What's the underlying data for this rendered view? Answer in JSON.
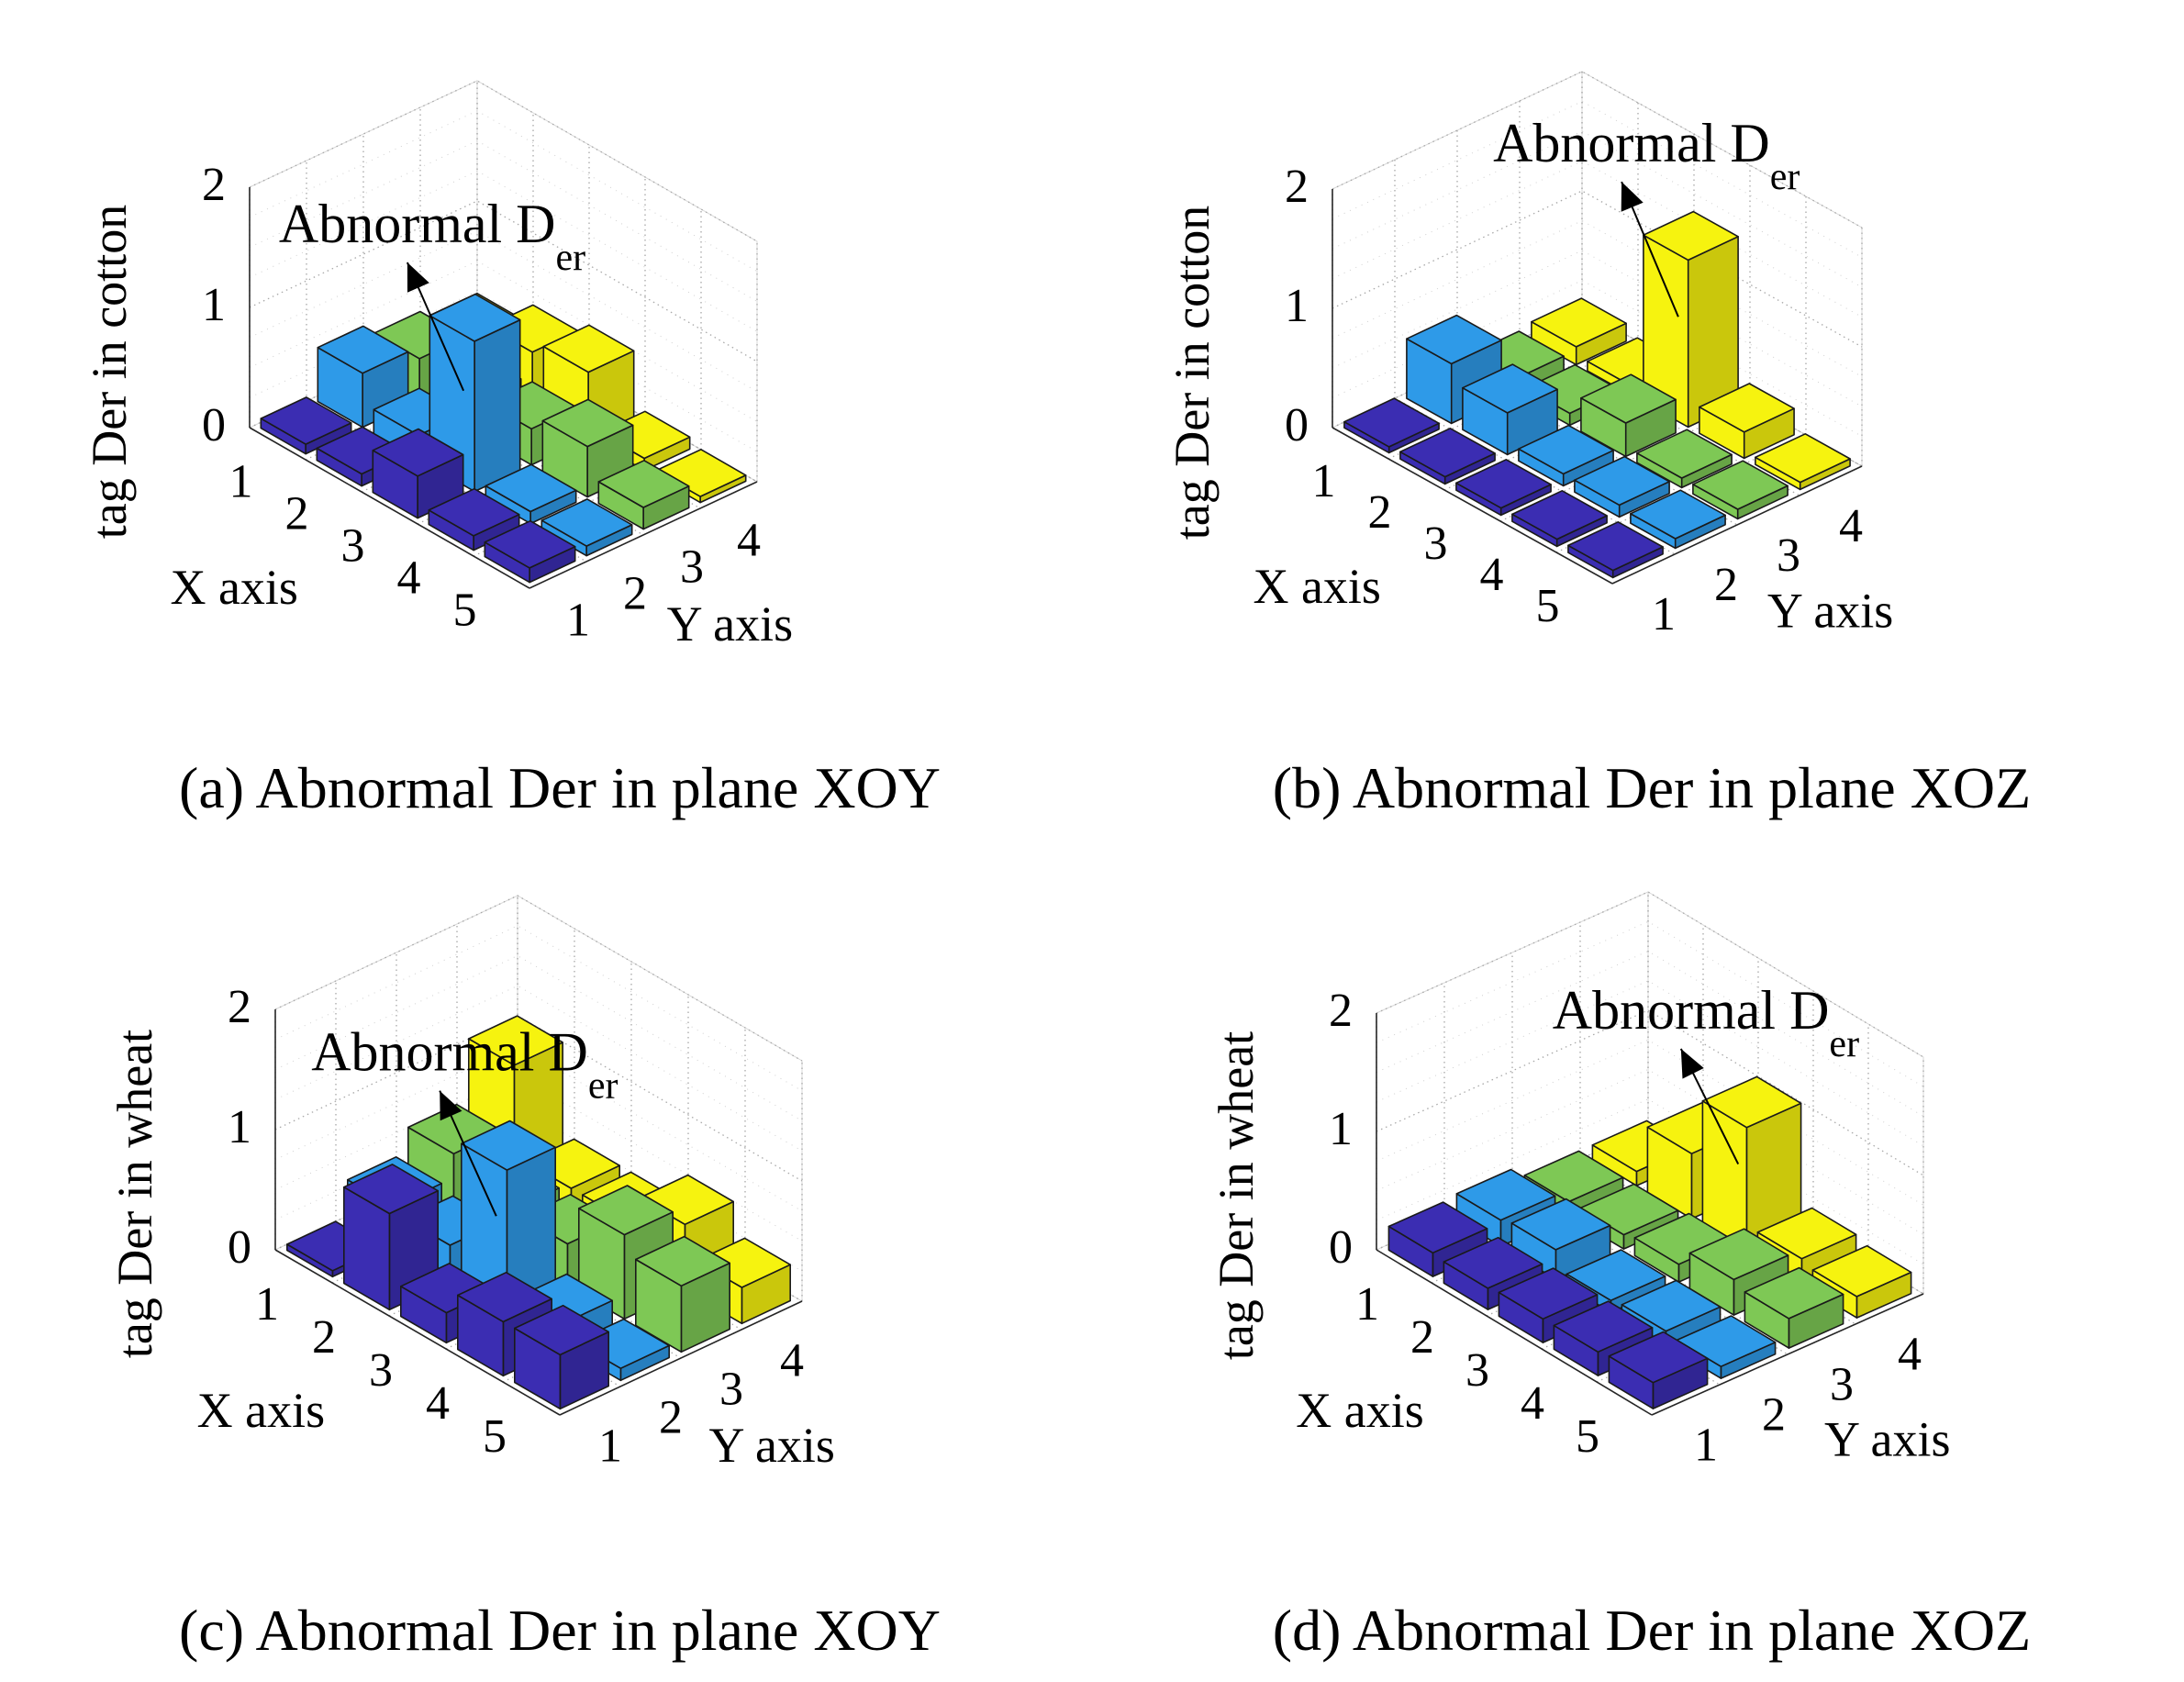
{
  "figure": {
    "panels": [
      "a",
      "b",
      "c",
      "d"
    ]
  },
  "chart_data": [
    {
      "id": "a",
      "type": "bar3d",
      "caption": "(a) Abnormal Der in plane XOY",
      "zlabel": "tag Der in cotton",
      "xlabel": "X axis",
      "ylabel": "Y axis",
      "annotation": {
        "text": "Abnormal D",
        "subscript": "er"
      },
      "x_ticks": [
        "1",
        "2",
        "3",
        "4",
        "5"
      ],
      "y_ticks": [
        "1",
        "2",
        "3",
        "4"
      ],
      "z_ticks": [
        "0",
        "1",
        "2"
      ],
      "zlim": [
        0,
        2
      ],
      "series_colors": [
        "#3b2db2",
        "#2e9ae8",
        "#7ec855",
        "#f6f30f"
      ],
      "values": [
        [
          0.08,
          0.45,
          0.35,
          0.28
        ],
        [
          0.1,
          0.2,
          0.27,
          0.45
        ],
        [
          0.35,
          1.25,
          0.3,
          0.55
        ],
        [
          0.12,
          0.1,
          0.42,
          0.1
        ],
        [
          0.12,
          0.08,
          0.18,
          0.05
        ]
      ]
    },
    {
      "id": "b",
      "type": "bar3d",
      "caption": "(b) Abnormal Der in plane XOZ",
      "zlabel": "tag Der in cotton",
      "xlabel": "X axis",
      "ylabel": "Y axis",
      "annotation": {
        "text": "Abnormal D",
        "subscript": "er"
      },
      "x_ticks": [
        "1",
        "2",
        "3",
        "4",
        "5"
      ],
      "y_ticks": [
        "1",
        "2",
        "3",
        "4"
      ],
      "z_ticks": [
        "0",
        "1",
        "2"
      ],
      "zlim": [
        0,
        2
      ],
      "series_colors": [
        "#3b2db2",
        "#2e9ae8",
        "#7ec855",
        "#f6f30f"
      ],
      "values": [
        [
          0.05,
          0.5,
          0.12,
          0.15
        ],
        [
          0.06,
          0.35,
          0.1,
          0.08
        ],
        [
          0.06,
          0.1,
          0.28,
          1.4
        ],
        [
          0.06,
          0.1,
          0.08,
          0.22
        ],
        [
          0.06,
          0.08,
          0.08,
          0.06
        ]
      ]
    },
    {
      "id": "c",
      "type": "bar3d",
      "caption": "(c) Abnormal Der in plane XOY",
      "zlabel": "tag Der in wheat",
      "xlabel": "X axis",
      "ylabel": "Y axis",
      "annotation": {
        "text": "Abnormal D",
        "subscript": "er"
      },
      "x_ticks": [
        "1",
        "2",
        "3",
        "4",
        "5"
      ],
      "y_ticks": [
        "1",
        "2",
        "3",
        "4"
      ],
      "z_ticks": [
        "0",
        "1",
        "2"
      ],
      "zlim": [
        0,
        2
      ],
      "series_colors": [
        "#3b2db2",
        "#2e9ae8",
        "#7ec855",
        "#f6f30f"
      ],
      "values": [
        [
          0.05,
          0.35,
          0.55,
          1.05
        ],
        [
          0.8,
          0.3,
          0.35,
          0.3
        ],
        [
          0.25,
          1.2,
          0.35,
          0.3
        ],
        [
          0.45,
          0.2,
          0.7,
          0.55
        ],
        [
          0.45,
          0.1,
          0.55,
          0.3
        ]
      ]
    },
    {
      "id": "d",
      "type": "bar3d",
      "caption": "(d) Abnormal Der in plane XOZ",
      "zlabel": "tag Der in wheat",
      "xlabel": "X axis",
      "ylabel": "Y axis",
      "annotation": {
        "text": "Abnormal D",
        "subscript": "er"
      },
      "x_ticks": [
        "1",
        "2",
        "3",
        "4",
        "5"
      ],
      "y_ticks": [
        "1",
        "2",
        "3",
        "4"
      ],
      "z_ticks": [
        "0",
        "1",
        "2"
      ],
      "zlim": [
        0,
        2
      ],
      "series_colors": [
        "#3b2db2",
        "#2e9ae8",
        "#7ec855",
        "#f6f30f"
      ],
      "values": [
        [
          0.2,
          0.22,
          0.12,
          0.12
        ],
        [
          0.18,
          0.25,
          0.12,
          0.55
        ],
        [
          0.2,
          0.1,
          0.15,
          1.05
        ],
        [
          0.2,
          0.12,
          0.3,
          0.22
        ],
        [
          0.22,
          0.1,
          0.25,
          0.18
        ]
      ]
    }
  ]
}
